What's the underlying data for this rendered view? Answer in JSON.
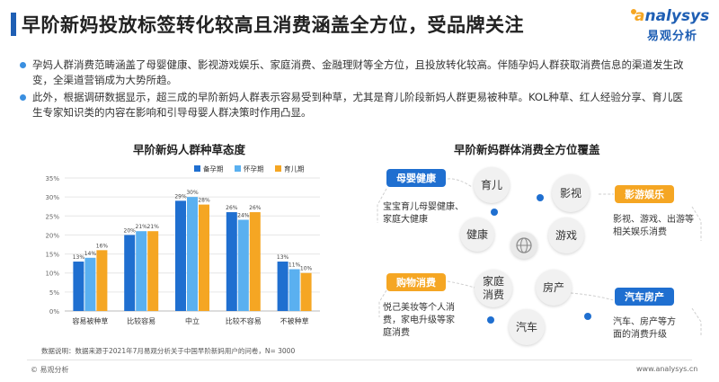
{
  "header": {
    "title": "早阶新妈投放标签转化较高且消费涵盖全方位，受品牌关注",
    "logo_en": "nalysys",
    "logo_cn": "易观分析"
  },
  "bullets": [
    "孕妈人群消费范畴涵盖了母婴健康、影视游戏娱乐、家庭消费、金融理财等全方位，且投放转化较高。伴随孕妈人群获取消费信息的渠道发生改变，全渠道营销成为大势所趋。",
    "此外，根据调研数据显示，超三成的早阶新妈人群表示容易受到种草，尤其是育儿阶段新妈人群更易被种草。KOL种草、红人经验分享、育儿医生专家知识类的内容在影响和引导母婴人群决策时作用凸显。"
  ],
  "chart_data": {
    "type": "bar",
    "title": "早阶新妈人群种草态度",
    "categories": [
      "容易被种草",
      "比较容易",
      "中立",
      "比较不容易",
      "不被种草"
    ],
    "series": [
      {
        "name": "备孕期",
        "color": "#1f6fd0",
        "values": [
          13,
          20,
          29,
          26,
          13
        ]
      },
      {
        "name": "怀孕期",
        "color": "#5ab0f0",
        "values": [
          14,
          21,
          30,
          24,
          11
        ]
      },
      {
        "name": "育儿期",
        "color": "#f5a623",
        "values": [
          16,
          21,
          28,
          26,
          10
        ]
      }
    ],
    "ylim": [
      0,
      35
    ],
    "yticks": [
      "0%",
      "5%",
      "10%",
      "15%",
      "20%",
      "25%",
      "30%",
      "35%"
    ],
    "legend": "top-right",
    "grid": true
  },
  "source": "数据说明：数据来源于2021年7月易观分析关于中国早阶新妈用户的问卷，N= 3000",
  "diagram": {
    "title": "早阶新妈群体消费全方位覆盖",
    "bubbles": {
      "yuer": "育儿",
      "yingshi": "影视",
      "jiankang": "健康",
      "youxi": "游戏",
      "jiating": "家庭消费",
      "fangchan": "房产",
      "qiche": "汽车"
    },
    "tags": {
      "muying": "母婴健康",
      "yingyou": "影游娱乐",
      "gouwu": "购物消费",
      "qichefang": "汽车房产"
    },
    "descs": {
      "muying": "宝宝育儿母婴健康、家庭大健康",
      "yingyou": "影视、游戏、出游等相关娱乐消费",
      "gouwu": "悦己美妆等个人消费，家电升级等家庭消费",
      "qichefang": "汽车、房产等方面的消费升级"
    }
  },
  "footer": {
    "left": "© 易观分析",
    "right": "www.analysys.cn"
  }
}
